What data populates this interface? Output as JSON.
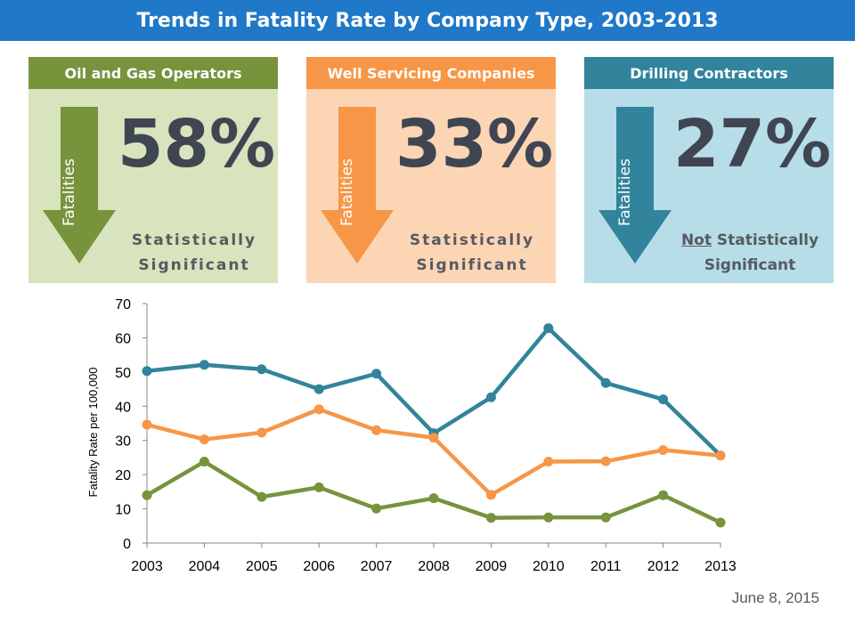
{
  "title": "Trends in Fatality Rate by Company Type, 2003-2013",
  "panels": [
    {
      "header": "Oil and Gas Operators",
      "arrow_label": "Fatalities",
      "percent": "58%",
      "significance_line1": "Statistically",
      "significance_line2": "Significant",
      "header_color": "#77933c",
      "body_color": "#d7e4bd",
      "arrow_color": "#77933c"
    },
    {
      "header": "Well Servicing Companies",
      "arrow_label": "Fatalities",
      "percent": "33%",
      "significance_line1": "Statistically",
      "significance_line2": "Significant",
      "header_color": "#f79646",
      "body_color": "#fcd5b5",
      "arrow_color": "#f79646"
    },
    {
      "header": "Drilling Contractors",
      "arrow_label": "Fatalities",
      "percent": "27%",
      "significance_not": "Not",
      "significance_line1": " Statistically",
      "significance_line2": "Significant",
      "header_color": "#31849b",
      "body_color": "#b7dde8",
      "arrow_color": "#31849b"
    }
  ],
  "chart_data": {
    "type": "line",
    "x": [
      2003,
      2004,
      2005,
      2006,
      2007,
      2008,
      2009,
      2010,
      2011,
      2012,
      2013
    ],
    "categories": [
      "2003",
      "2004",
      "2005",
      "2006",
      "2007",
      "2008",
      "2009",
      "2010",
      "2011",
      "2012",
      "2013"
    ],
    "ylabel": "Fatality Rate per 100,000",
    "ylim": [
      0,
      70
    ],
    "yticks": [
      0,
      10,
      20,
      30,
      40,
      50,
      60,
      70
    ],
    "grid": false,
    "legend": "none",
    "series": [
      {
        "color": "#31849b",
        "values": [
          50.3,
          52.1,
          50.8,
          45.0,
          49.5,
          32.1,
          42.6,
          62.8,
          46.8,
          42.0,
          25.6
        ]
      },
      {
        "color": "#f79646",
        "values": [
          34.6,
          30.3,
          32.3,
          39.1,
          33.0,
          30.8,
          14.1,
          23.8,
          23.9,
          27.2,
          25.6
        ]
      },
      {
        "color": "#77933c",
        "values": [
          14.0,
          23.8,
          13.5,
          16.3,
          10.1,
          13.1,
          7.4,
          7.5,
          7.5,
          14.0,
          6.0
        ]
      }
    ]
  },
  "footer_date": "June 8, 2015"
}
